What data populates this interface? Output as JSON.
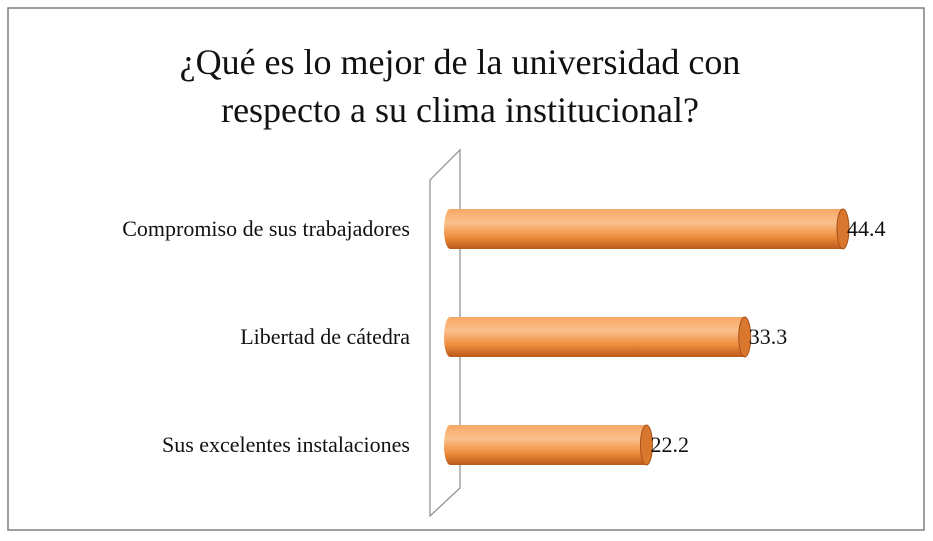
{
  "chart_data": {
    "type": "bar",
    "orientation": "horizontal",
    "title": "¿Qué es lo mejor de la universidad con respecto a su clima institucional?",
    "categories": [
      "Compromiso de sus trabajadores",
      "Libertad de cátedra",
      "Sus excelentes instalaciones"
    ],
    "values": [
      44.4,
      33.3,
      22.2
    ],
    "color": "#f09a4e"
  }
}
